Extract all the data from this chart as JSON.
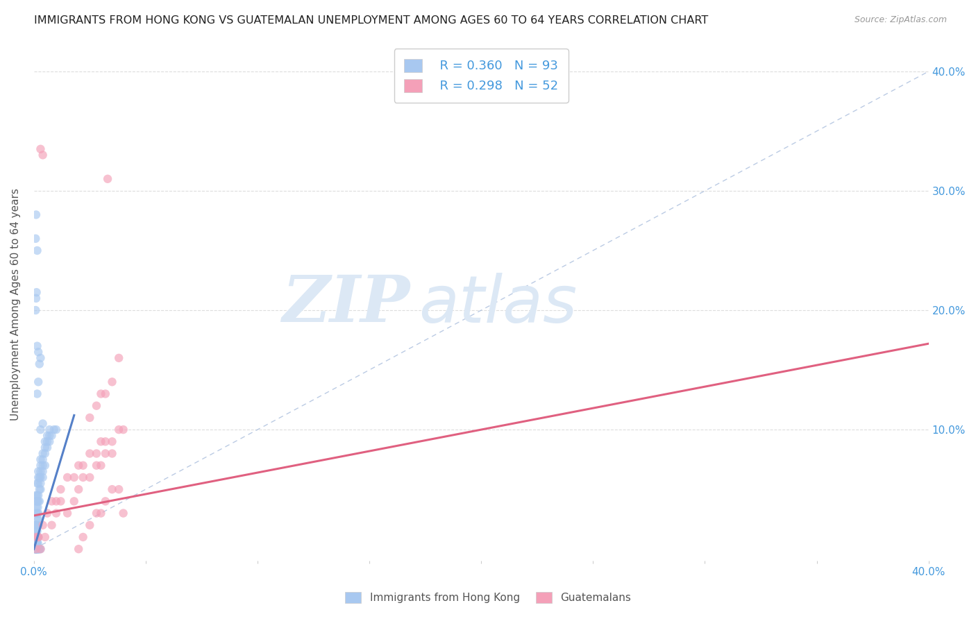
{
  "title": "IMMIGRANTS FROM HONG KONG VS GUATEMALAN UNEMPLOYMENT AMONG AGES 60 TO 64 YEARS CORRELATION CHART",
  "source": "Source: ZipAtlas.com",
  "ylabel": "Unemployment Among Ages 60 to 64 years",
  "y_ticks": [
    0.0,
    0.1,
    0.2,
    0.3,
    0.4
  ],
  "y_tick_labels": [
    "",
    "10.0%",
    "20.0%",
    "30.0%",
    "40.0%"
  ],
  "x_lim": [
    0.0,
    0.4
  ],
  "y_lim": [
    -0.01,
    0.42
  ],
  "legend_label_blue": "Immigrants from Hong Kong",
  "legend_label_pink": "Guatemalans",
  "R_blue": 0.36,
  "N_blue": 93,
  "R_pink": 0.298,
  "N_pink": 52,
  "blue_color": "#a8c8f0",
  "pink_color": "#f4a0b8",
  "blue_line_color": "#5580c8",
  "pink_line_color": "#e06080",
  "diagonal_color": "#aabedd",
  "watermark_color": "#dce8f5",
  "blue_line_x": [
    0.0,
    0.018
  ],
  "blue_line_y": [
    0.0,
    0.112
  ],
  "pink_line_x": [
    0.0,
    0.4
  ],
  "pink_line_y": [
    0.028,
    0.172
  ],
  "blue_scatter": [
    [
      0.0005,
      0.0
    ],
    [
      0.0008,
      0.0
    ],
    [
      0.001,
      0.0
    ],
    [
      0.0012,
      0.0
    ],
    [
      0.0015,
      0.0
    ],
    [
      0.0018,
      0.0
    ],
    [
      0.002,
      0.0
    ],
    [
      0.0022,
      0.0
    ],
    [
      0.0025,
      0.0
    ],
    [
      0.003,
      0.0
    ],
    [
      0.0008,
      0.0
    ],
    [
      0.001,
      0.0
    ],
    [
      0.0005,
      0.0
    ],
    [
      0.0006,
      0.0
    ],
    [
      0.0007,
      0.0
    ],
    [
      0.001,
      0.0
    ],
    [
      0.0015,
      0.0
    ],
    [
      0.0018,
      0.0
    ],
    [
      0.0022,
      0.0
    ],
    [
      0.0012,
      0.0
    ],
    [
      0.001,
      0.005
    ],
    [
      0.0012,
      0.005
    ],
    [
      0.0015,
      0.005
    ],
    [
      0.0018,
      0.005
    ],
    [
      0.0008,
      0.01
    ],
    [
      0.001,
      0.01
    ],
    [
      0.0012,
      0.01
    ],
    [
      0.0015,
      0.01
    ],
    [
      0.002,
      0.01
    ],
    [
      0.0008,
      0.015
    ],
    [
      0.001,
      0.015
    ],
    [
      0.0015,
      0.015
    ],
    [
      0.002,
      0.02
    ],
    [
      0.0008,
      0.02
    ],
    [
      0.001,
      0.02
    ],
    [
      0.0012,
      0.02
    ],
    [
      0.0015,
      0.025
    ],
    [
      0.002,
      0.025
    ],
    [
      0.001,
      0.03
    ],
    [
      0.0015,
      0.03
    ],
    [
      0.002,
      0.03
    ],
    [
      0.0012,
      0.035
    ],
    [
      0.0018,
      0.035
    ],
    [
      0.001,
      0.04
    ],
    [
      0.0015,
      0.04
    ],
    [
      0.002,
      0.04
    ],
    [
      0.0025,
      0.04
    ],
    [
      0.001,
      0.045
    ],
    [
      0.0015,
      0.045
    ],
    [
      0.002,
      0.045
    ],
    [
      0.0025,
      0.05
    ],
    [
      0.003,
      0.05
    ],
    [
      0.0015,
      0.055
    ],
    [
      0.002,
      0.055
    ],
    [
      0.003,
      0.055
    ],
    [
      0.002,
      0.06
    ],
    [
      0.0025,
      0.06
    ],
    [
      0.003,
      0.06
    ],
    [
      0.004,
      0.06
    ],
    [
      0.002,
      0.065
    ],
    [
      0.003,
      0.065
    ],
    [
      0.004,
      0.065
    ],
    [
      0.003,
      0.07
    ],
    [
      0.004,
      0.07
    ],
    [
      0.005,
      0.07
    ],
    [
      0.003,
      0.075
    ],
    [
      0.004,
      0.075
    ],
    [
      0.005,
      0.08
    ],
    [
      0.004,
      0.08
    ],
    [
      0.005,
      0.085
    ],
    [
      0.006,
      0.085
    ],
    [
      0.005,
      0.09
    ],
    [
      0.006,
      0.09
    ],
    [
      0.007,
      0.09
    ],
    [
      0.006,
      0.095
    ],
    [
      0.007,
      0.095
    ],
    [
      0.008,
      0.095
    ],
    [
      0.007,
      0.1
    ],
    [
      0.009,
      0.1
    ],
    [
      0.01,
      0.1
    ],
    [
      0.003,
      0.1
    ],
    [
      0.004,
      0.105
    ],
    [
      0.0015,
      0.13
    ],
    [
      0.002,
      0.14
    ],
    [
      0.0025,
      0.155
    ],
    [
      0.003,
      0.16
    ],
    [
      0.0008,
      0.2
    ],
    [
      0.001,
      0.21
    ],
    [
      0.0012,
      0.215
    ],
    [
      0.0015,
      0.25
    ],
    [
      0.0008,
      0.26
    ],
    [
      0.001,
      0.28
    ],
    [
      0.002,
      0.165
    ],
    [
      0.0015,
      0.17
    ]
  ],
  "pink_scatter": [
    [
      0.001,
      0.0
    ],
    [
      0.002,
      0.01
    ],
    [
      0.004,
      0.02
    ],
    [
      0.006,
      0.03
    ],
    [
      0.008,
      0.04
    ],
    [
      0.01,
      0.04
    ],
    [
      0.012,
      0.05
    ],
    [
      0.015,
      0.06
    ],
    [
      0.018,
      0.06
    ],
    [
      0.02,
      0.07
    ],
    [
      0.022,
      0.07
    ],
    [
      0.025,
      0.08
    ],
    [
      0.028,
      0.08
    ],
    [
      0.03,
      0.09
    ],
    [
      0.032,
      0.09
    ],
    [
      0.035,
      0.09
    ],
    [
      0.038,
      0.1
    ],
    [
      0.04,
      0.1
    ],
    [
      0.015,
      0.03
    ],
    [
      0.018,
      0.04
    ],
    [
      0.02,
      0.05
    ],
    [
      0.022,
      0.06
    ],
    [
      0.025,
      0.06
    ],
    [
      0.028,
      0.07
    ],
    [
      0.03,
      0.07
    ],
    [
      0.032,
      0.08
    ],
    [
      0.035,
      0.08
    ],
    [
      0.008,
      0.02
    ],
    [
      0.01,
      0.03
    ],
    [
      0.012,
      0.04
    ],
    [
      0.025,
      0.11
    ],
    [
      0.028,
      0.12
    ],
    [
      0.03,
      0.13
    ],
    [
      0.032,
      0.13
    ],
    [
      0.035,
      0.14
    ],
    [
      0.038,
      0.16
    ],
    [
      0.02,
      0.0
    ],
    [
      0.022,
      0.01
    ],
    [
      0.025,
      0.02
    ],
    [
      0.028,
      0.03
    ],
    [
      0.03,
      0.03
    ],
    [
      0.032,
      0.04
    ],
    [
      0.035,
      0.05
    ],
    [
      0.038,
      0.05
    ],
    [
      0.002,
      0.01
    ],
    [
      0.003,
      0.0
    ],
    [
      0.001,
      0.01
    ],
    [
      0.005,
      0.01
    ],
    [
      0.003,
      0.335
    ],
    [
      0.004,
      0.33
    ],
    [
      0.033,
      0.31
    ],
    [
      0.04,
      0.03
    ]
  ],
  "background_color": "#ffffff",
  "grid_color": "#dddddd",
  "title_color": "#222222",
  "axis_label_color": "#555555",
  "tick_label_color": "#4499dd"
}
